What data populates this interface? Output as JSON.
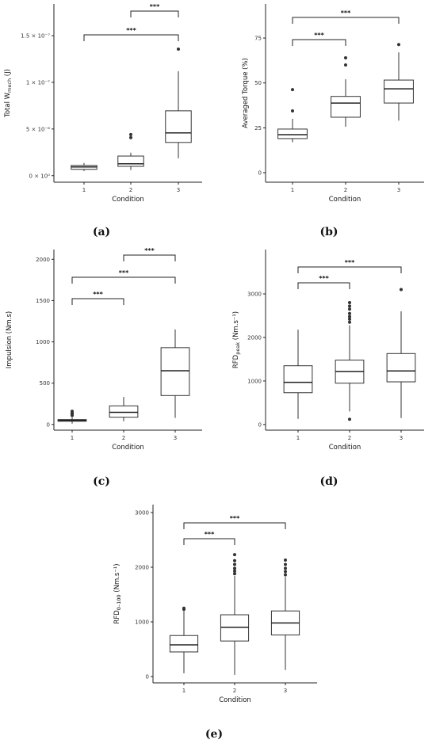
{
  "chart_data": [
    {
      "type": "box",
      "panel": "(a)",
      "x_label": "Condition",
      "y_label": {
        "main": "Total W",
        "sub": "mech",
        "rest": " (J)"
      },
      "categories": [
        "1",
        "2",
        "3"
      ],
      "boxes": [
        {
          "whislo": 5e-09,
          "q1": 6.8e-09,
          "med": 9.3e-09,
          "q3": 1.1e-08,
          "whishi": 1.36e-08,
          "fliers": []
        },
        {
          "whislo": 6e-09,
          "q1": 1e-08,
          "med": 1.27e-08,
          "q3": 2.1e-08,
          "whishi": 2.46e-08,
          "fliers": [
            4.07e-08,
            4.4e-08
          ]
        },
        {
          "whislo": 1.86e-08,
          "q1": 3.56e-08,
          "med": 4.58e-08,
          "q3": 6.95e-08,
          "whishi": 1.12e-07,
          "fliers": [
            1.356e-07
          ]
        }
      ],
      "ylim": [
        -7e-09,
        1.84e-07
      ],
      "yticks": [
        {
          "value": 0,
          "label": "0 × 10⁰"
        },
        {
          "value": 5e-08,
          "label": "5 × 10⁻⁸"
        },
        {
          "value": 1e-07,
          "label": "1 × 10⁻⁷"
        },
        {
          "value": 1.5e-07,
          "label": "1.5 × 10⁻⁷"
        }
      ],
      "comparisons": [
        {
          "pair": [
            "1",
            "3"
          ],
          "label": "***"
        },
        {
          "pair": [
            "2",
            "3"
          ],
          "label": "***"
        }
      ]
    },
    {
      "type": "box",
      "panel": "(b)",
      "x_label": "Condition",
      "y_label": {
        "main": "Averaged Torque (%)",
        "sub": "",
        "rest": ""
      },
      "categories": [
        "1",
        "2",
        "3"
      ],
      "boxes": [
        {
          "whislo": 17,
          "q1": 19,
          "med": 21.2,
          "q3": 24.3,
          "whishi": 30,
          "fliers": [
            34.4,
            46.3
          ]
        },
        {
          "whislo": 25.6,
          "q1": 30.9,
          "med": 38.8,
          "q3": 42.5,
          "whishi": 52,
          "fliers": [
            60,
            64
          ]
        },
        {
          "whislo": 29,
          "q1": 38.8,
          "med": 46.7,
          "q3": 51.6,
          "whishi": 67,
          "fliers": [
            71.4
          ]
        }
      ],
      "ylim": [
        -5.3,
        94
      ],
      "yticks": [
        0,
        25,
        50,
        75
      ],
      "comparisons": [
        {
          "pair": [
            "1",
            "2"
          ],
          "label": "***"
        },
        {
          "pair": [
            "1",
            "3"
          ],
          "label": "***"
        }
      ]
    },
    {
      "type": "box",
      "panel": "(c)",
      "x_label": "Condition",
      "y_label": {
        "main": "Impulsion (Nm.s)",
        "sub": "",
        "rest": ""
      },
      "categories": [
        "1",
        "2",
        "3"
      ],
      "boxes": [
        {
          "whislo": 10,
          "q1": 39,
          "med": 49,
          "q3": 59,
          "whishi": 88,
          "fliers": [
            110,
            125,
            140,
            160
          ]
        },
        {
          "whislo": 39,
          "q1": 88,
          "med": 147,
          "q3": 225,
          "whishi": 333,
          "fliers": []
        },
        {
          "whislo": 80,
          "q1": 350,
          "med": 650,
          "q3": 930,
          "whishi": 1150,
          "fliers": []
        }
      ],
      "ylim": [
        -69,
        2118
      ],
      "yticks": [
        0,
        500,
        1000,
        1500,
        2000
      ],
      "comparisons": [
        {
          "pair": [
            "1",
            "2"
          ],
          "label": "***"
        },
        {
          "pair": [
            "1",
            "3"
          ],
          "label": "***"
        },
        {
          "pair": [
            "2",
            "3"
          ],
          "label": "***"
        }
      ]
    },
    {
      "type": "box",
      "panel": "(d)",
      "x_label": "Condition",
      "y_label": {
        "main": "RFD",
        "sub": "peak",
        "rest": " (Nm.s⁻¹)"
      },
      "categories": [
        "1",
        "2",
        "3"
      ],
      "boxes": [
        {
          "whislo": 130,
          "q1": 730,
          "med": 970,
          "q3": 1350,
          "whishi": 2180,
          "fliers": []
        },
        {
          "whislo": 300,
          "q1": 950,
          "med": 1220,
          "q3": 1480,
          "whishi": 2280,
          "fliers": [
            120,
            2350,
            2420,
            2480,
            2550,
            2650,
            2720,
            2800
          ]
        },
        {
          "whislo": 150,
          "q1": 980,
          "med": 1230,
          "q3": 1630,
          "whishi": 2600,
          "fliers": [
            3100
          ]
        }
      ],
      "ylim": [
        -130,
        4020
      ],
      "yticks": [
        0,
        1000,
        2000,
        3000
      ],
      "comparisons": [
        {
          "pair": [
            "1",
            "2"
          ],
          "label": "***"
        },
        {
          "pair": [
            "1",
            "3"
          ],
          "label": "***"
        }
      ]
    },
    {
      "type": "box",
      "panel": "(e)",
      "x_label": "Condition",
      "y_label": {
        "main": "RFD",
        "sub": "0–100",
        "rest": " (Nm.s⁻¹)"
      },
      "categories": [
        "1",
        "2",
        "3"
      ],
      "boxes": [
        {
          "whislo": 60,
          "q1": 450,
          "med": 580,
          "q3": 750,
          "whishi": 1200,
          "fliers": [
            1230,
            1250
          ]
        },
        {
          "whislo": 30,
          "q1": 650,
          "med": 900,
          "q3": 1130,
          "whishi": 1840,
          "fliers": [
            1880,
            1930,
            1980,
            2050,
            2120,
            2230
          ]
        },
        {
          "whislo": 120,
          "q1": 760,
          "med": 980,
          "q3": 1200,
          "whishi": 1820,
          "fliers": [
            1860,
            1920,
            1980,
            2050,
            2130
          ]
        }
      ],
      "ylim": [
        -116,
        3145
      ],
      "yticks": [
        0,
        1000,
        2000,
        3000
      ],
      "comparisons": [
        {
          "pair": [
            "1",
            "2"
          ],
          "label": "***"
        },
        {
          "pair": [
            "1",
            "3"
          ],
          "label": "***"
        }
      ]
    }
  ]
}
